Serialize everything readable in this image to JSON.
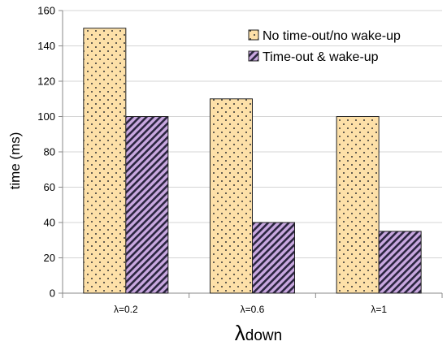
{
  "chart_data": {
    "type": "bar",
    "categories": [
      "λ=0.2",
      "λ=0.6",
      "λ=1"
    ],
    "series": [
      {
        "name": "No time-out/no wake-up",
        "values": [
          150,
          110,
          100
        ],
        "color": "#fde0a8",
        "pattern": "dots"
      },
      {
        "name": "Time-out & wake-up",
        "values": [
          100,
          40,
          35
        ],
        "color": "#c9a8e0",
        "pattern": "diagonal-stripes"
      }
    ],
    "title": "",
    "ylabel": "time (ms)",
    "xlabel_main": "λ",
    "xlabel_sub": "down",
    "ylim": [
      0,
      160
    ],
    "yticks": [
      0,
      20,
      40,
      60,
      80,
      100,
      120,
      140,
      160
    ],
    "grid": true,
    "legend_position": "top-right"
  }
}
